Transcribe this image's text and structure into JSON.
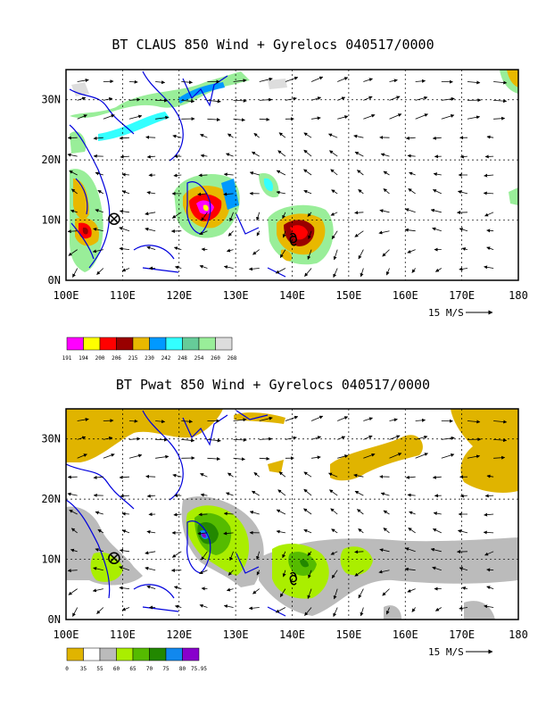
{
  "panels": [
    {
      "title": "BT CLAUS 850 Wind + Gyrelocs 040517/0000",
      "lon_labels": [
        "100E",
        "110E",
        "120E",
        "130E",
        "140E",
        "150E",
        "160E",
        "170E",
        "180"
      ],
      "lat_labels": [
        "0N",
        "10N",
        "20N",
        "30N"
      ],
      "scale_label": "15 M/S",
      "legend_values": [
        "191",
        "194",
        "200",
        "206",
        "215",
        "230",
        "242",
        "248",
        "254",
        "260",
        "268"
      ],
      "legend_colors": [
        "#ff00ff",
        "#ffff00",
        "#ff0000",
        "#990000",
        "#e8b800",
        "#0099ff",
        "#33ffff",
        "#66cc99",
        "#99ee99",
        "#dddddd"
      ],
      "gyre_markers": [
        {
          "type": "crossed-circle",
          "lon": 108.5,
          "lat": 10.2
        },
        {
          "type": "cyclone",
          "lon": 140.2,
          "lat": 6.8
        }
      ]
    },
    {
      "title": "BT Pwat 850 Wind + Gyrelocs 040517/0000",
      "lon_labels": [
        "100E",
        "110E",
        "120E",
        "130E",
        "140E",
        "150E",
        "160E",
        "170E",
        "180"
      ],
      "lat_labels": [
        "0N",
        "10N",
        "20N",
        "30N"
      ],
      "scale_label": "15 M/S",
      "legend_values": [
        "0",
        "35",
        "55",
        "60",
        "65",
        "70",
        "75",
        "80",
        "75.95"
      ],
      "legend_colors": [
        "#e0b400",
        "#ffffff",
        "#bbbbbb",
        "#aaee00",
        "#55bb00",
        "#228800",
        "#1188ee",
        "#8800cc"
      ],
      "gyre_markers": [
        {
          "type": "crossed-circle",
          "lon": 108.5,
          "lat": 10.2
        },
        {
          "type": "cyclone",
          "lon": 140.2,
          "lat": 6.8
        }
      ]
    }
  ]
}
